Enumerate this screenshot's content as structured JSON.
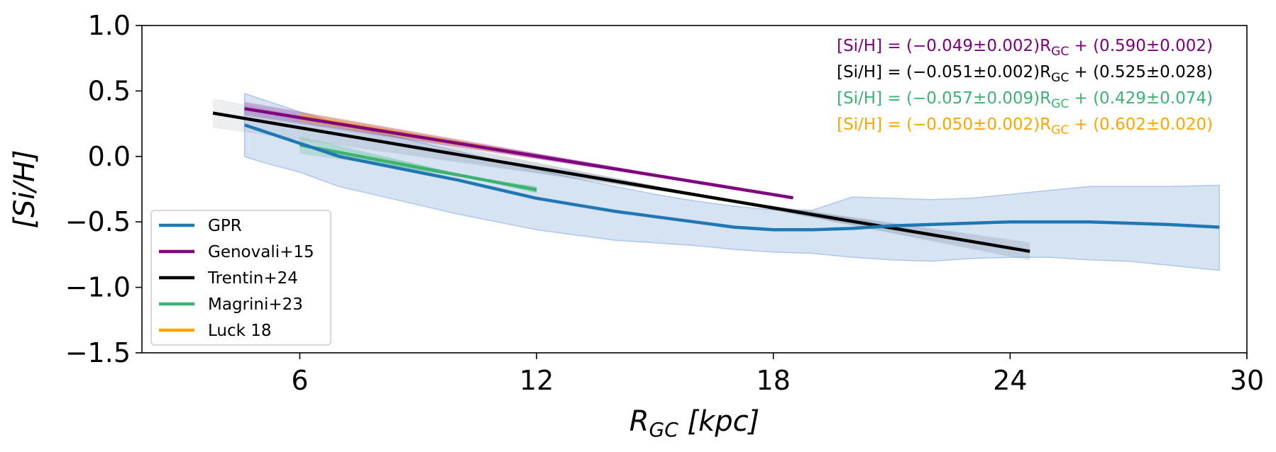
{
  "chart_data": {
    "type": "line",
    "xlabel_main": "R",
    "xlabel_sub": "GC",
    "xlabel_unit": " [kpc]",
    "ylabel": "[Si/H]",
    "xlim": [
      2,
      30
    ],
    "ylim": [
      -1.5,
      1.0
    ],
    "xticks": [
      6,
      12,
      18,
      24,
      30
    ],
    "yticks": [
      1.0,
      0.5,
      0.0,
      -0.5,
      -1.0,
      -1.5
    ],
    "ytick_labels": [
      "1.0",
      "0.5",
      "0.0",
      "−0.5",
      "−1.0",
      "−1.5"
    ],
    "xtick_labels": [
      "6",
      "12",
      "18",
      "24",
      "30"
    ],
    "legend_position": "lower-left",
    "colors": {
      "gpr": "#1f77b4",
      "gpr_band": "#aec7e8",
      "genovali": "#800080",
      "trentin": "#000000",
      "magrini": "#3cb371",
      "luck": "#ffa500"
    },
    "series": [
      {
        "name": "GPR",
        "color": "#1f77b4",
        "x": [
          4.6,
          5.0,
          6.0,
          7.0,
          8.0,
          9.0,
          10.0,
          11.0,
          12.0,
          13.0,
          14.0,
          15.0,
          16.0,
          17.0,
          18.0,
          19.0,
          20.0,
          21.0,
          22.0,
          23.0,
          24.0,
          25.0,
          26.0,
          27.0,
          28.0,
          29.3
        ],
        "y": [
          0.24,
          0.2,
          0.1,
          0.0,
          -0.06,
          -0.12,
          -0.18,
          -0.25,
          -0.32,
          -0.37,
          -0.42,
          -0.46,
          -0.5,
          -0.54,
          -0.56,
          -0.56,
          -0.55,
          -0.53,
          -0.52,
          -0.51,
          -0.5,
          -0.5,
          -0.5,
          -0.51,
          -0.52,
          -0.54
        ],
        "band_upper": [
          0.48,
          0.44,
          0.34,
          0.25,
          0.18,
          0.11,
          0.04,
          -0.03,
          -0.1,
          -0.17,
          -0.23,
          -0.29,
          -0.34,
          -0.38,
          -0.41,
          -0.41,
          -0.31,
          -0.32,
          -0.33,
          -0.32,
          -0.29,
          -0.26,
          -0.23,
          -0.23,
          -0.23,
          -0.22
        ],
        "band_lower": [
          0.0,
          -0.04,
          -0.12,
          -0.23,
          -0.3,
          -0.37,
          -0.44,
          -0.5,
          -0.56,
          -0.6,
          -0.64,
          -0.66,
          -0.68,
          -0.71,
          -0.73,
          -0.74,
          -0.77,
          -0.79,
          -0.8,
          -0.78,
          -0.77,
          -0.77,
          -0.79,
          -0.8,
          -0.83,
          -0.87
        ]
      },
      {
        "name": "Genovali+15",
        "color": "#800080",
        "x": [
          4.6,
          18.5
        ],
        "y": [
          0.365,
          -0.316
        ],
        "fan_spread": 0.05
      },
      {
        "name": "Trentin+24",
        "color": "#000000",
        "x": [
          3.8,
          24.5
        ],
        "y": [
          0.331,
          -0.725
        ],
        "fan_spread": 0.1
      },
      {
        "name": "Magrini+23",
        "color": "#3cb371",
        "x": [
          6.0,
          12.0
        ],
        "y": [
          0.087,
          -0.255
        ],
        "fan_spread": 0.15
      },
      {
        "name": "Luck 18",
        "color": "#ffa500",
        "x": [
          6.0,
          12.0
        ],
        "y": [
          0.302,
          0.002
        ],
        "fan_spread": 0.05
      }
    ],
    "annotations": [
      {
        "text": "[Si/H] = (−0.049±0.002)R",
        "sub": "GC",
        "rest": " + (0.590±0.002)",
        "color": "#800080"
      },
      {
        "text": "[Si/H] = (−0.051±0.002)R",
        "sub": "GC",
        "rest": " + (0.525±0.028)",
        "color": "#000000"
      },
      {
        "text": "[Si/H] = (−0.057±0.009)R",
        "sub": "GC",
        "rest": " + (0.429±0.074)",
        "color": "#3cb371"
      },
      {
        "text": "[Si/H] = (−0.050±0.002)R",
        "sub": "GC",
        "rest": " + (0.602±0.020)",
        "color": "#ffa500"
      }
    ]
  }
}
